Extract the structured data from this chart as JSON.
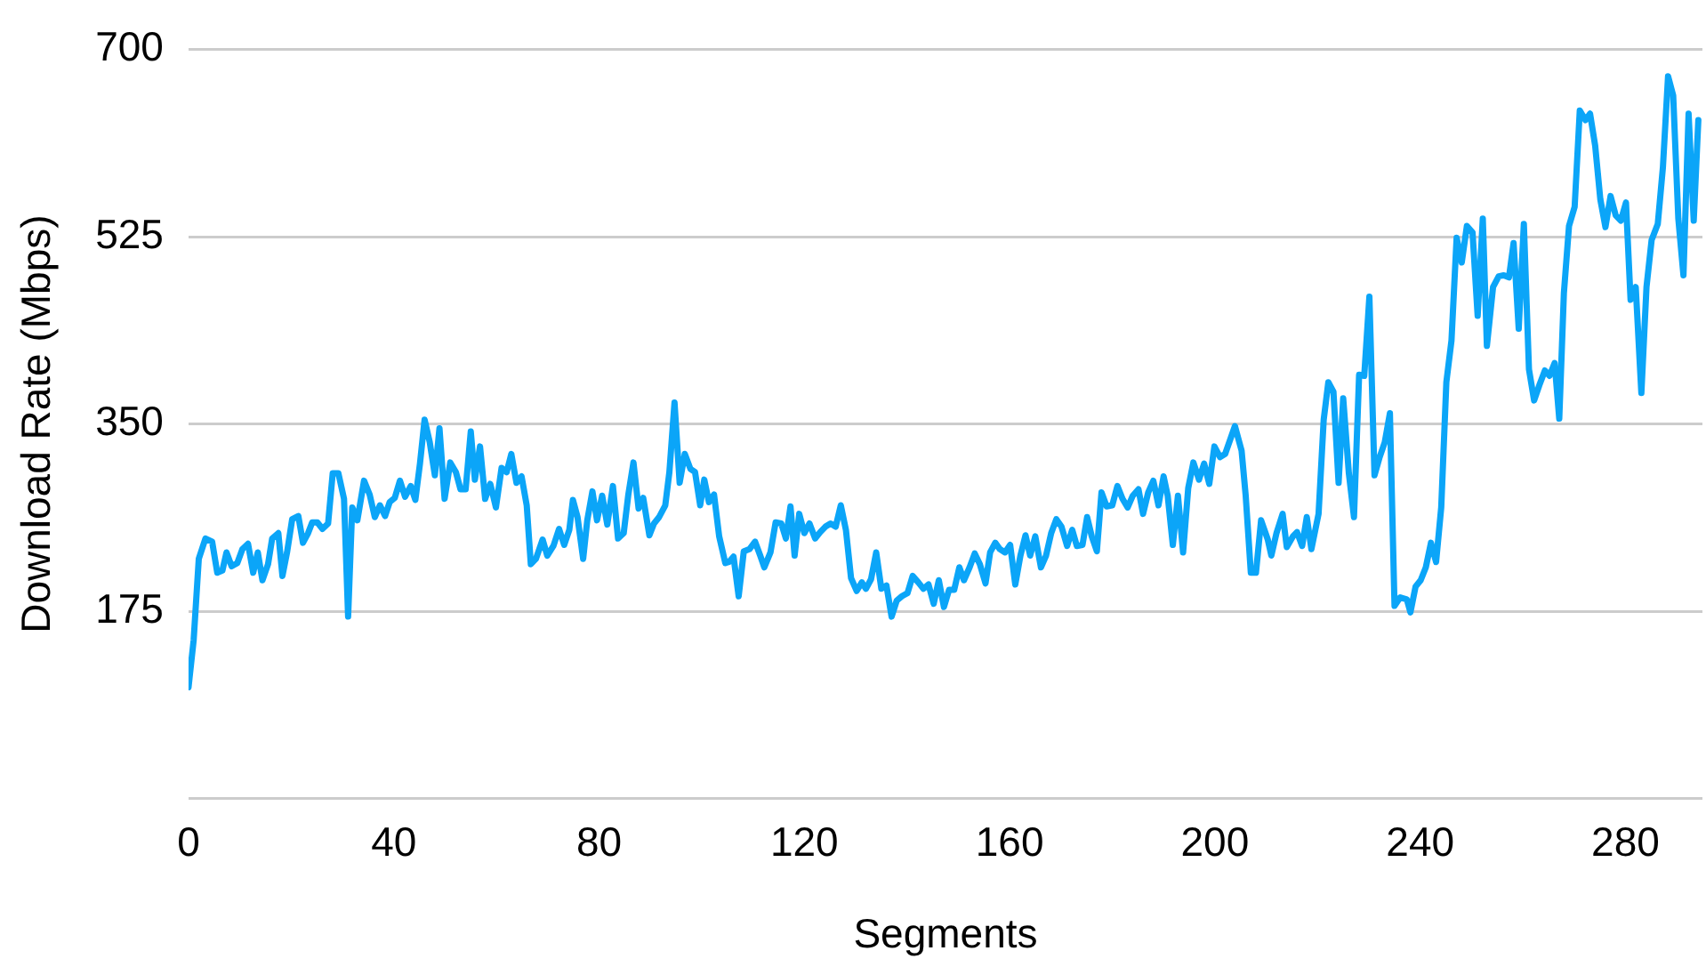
{
  "chart_data": {
    "type": "line",
    "xlabel": "Segments",
    "ylabel": "Download Rate (Mbps)",
    "xlim": [
      0,
      295
    ],
    "xticks": [
      0,
      40,
      80,
      120,
      160,
      200,
      240,
      280
    ],
    "ylim": [
      0,
      700
    ],
    "yticks": [
      {
        "value": 0,
        "label": null
      },
      175,
      350,
      525,
      700
    ],
    "grid": "y",
    "legend": false,
    "marker": "none",
    "line_style": "solid",
    "series": [
      {
        "color": "#0ba5f8",
        "x": [
          0,
          1,
          2,
          3.3,
          4.6,
          5.6,
          6.6,
          7.4,
          8.4,
          9.5,
          10.5,
          11.6,
          12.6,
          13.5,
          14.4,
          15.5,
          16.3,
          17.5,
          18.3,
          19.2,
          20.2,
          21.4,
          22.3,
          23.3,
          24.1,
          25.1,
          26.1,
          27.2,
          28.1,
          29.2,
          30.3,
          31.1,
          31.9,
          32.9,
          34.2,
          35.3,
          36.3,
          37.3,
          38.3,
          39.2,
          40.2,
          41.2,
          42.2,
          43.3,
          44.2,
          45.1,
          46,
          47,
          48,
          48.9,
          49.9,
          51,
          52.1,
          53,
          54,
          55,
          55.8,
          56.8,
          57.8,
          58.8,
          59.9,
          61,
          62,
          62.9,
          63.9,
          64.9,
          65.9,
          66.7,
          67.7,
          69,
          69.9,
          71.1,
          72.2,
          73.2,
          74.2,
          74.9,
          75.8,
          76.9,
          77.7,
          78.7,
          79.6,
          80.6,
          81.6,
          82.7,
          83.7,
          84.8,
          85.7,
          86.7,
          87.7,
          88.6,
          89.8,
          90.7,
          91.7,
          92.9,
          93.7,
          94.7,
          95.7,
          96.7,
          97.8,
          98.7,
          99.7,
          100.5,
          101.4,
          102.4,
          103.4,
          104.6,
          105.3,
          106.2,
          107.2,
          108.2,
          109.3,
          110.4,
          111.4,
          112.2,
          113.4,
          114.4,
          115.5,
          116.4,
          117.3,
          118.1,
          119,
          120,
          121,
          122.1,
          123.1,
          124.1,
          125.1,
          126.1,
          127.1,
          128.1,
          129.1,
          130.2,
          131.2,
          132,
          133,
          134,
          135,
          136,
          137,
          138,
          139,
          140.1,
          141.1,
          142.2,
          143.2,
          144.2,
          145.2,
          146.2,
          147.2,
          148.2,
          149.2,
          150.2,
          151.1,
          152.2,
          153.2,
          154.2,
          155.3,
          156.2,
          157.2,
          158.1,
          159.1,
          160.1,
          161.1,
          162.1,
          163.1,
          164,
          165,
          166.1,
          167.1,
          168.1,
          169.1,
          170.1,
          171.2,
          172.2,
          173.1,
          174.2,
          175.1,
          176,
          177,
          177.9,
          178.9,
          180,
          181,
          182,
          183,
          184,
          185.1,
          186,
          187,
          188,
          189,
          190,
          190.8,
          191.8,
          192.8,
          193.8,
          194.8,
          195.8,
          196.9,
          197.9,
          198.9,
          199.9,
          201,
          202,
          203.9,
          205.2,
          206,
          207,
          208,
          209,
          210.3,
          211,
          212,
          213.2,
          214,
          215.2,
          216,
          217,
          217.9,
          218.8,
          220.2,
          221.2,
          222.1,
          223.1,
          224.1,
          225,
          226.1,
          227.1,
          228.1,
          229.1,
          230.1,
          231.1,
          232.1,
          233.1,
          234.1,
          235,
          236.1,
          237.4,
          238.1,
          239.1,
          240.1,
          241.1,
          242.1,
          243.1,
          244.1,
          245.1,
          246.1,
          247.1,
          248.1,
          249.1,
          250.2,
          251.2,
          252.2,
          253,
          254.2,
          255.3,
          256.3,
          257.3,
          258.2,
          259.2,
          260.2,
          261.2,
          262.2,
          263.2,
          264.3,
          265.2,
          266.2,
          267.1,
          268,
          269,
          270.1,
          271.1,
          272.2,
          273.1,
          274.1,
          275.1,
          276.1,
          277.1,
          278.1,
          279.1,
          280.1,
          281,
          282,
          283.1,
          284.1,
          285.1,
          286.3,
          287.3,
          288.3,
          289.3,
          290.3,
          291.3,
          292.3,
          293.3,
          294.2
        ],
        "values": [
          104,
          148,
          224,
          243,
          240,
          211,
          213,
          230,
          217,
          220,
          233,
          238,
          211,
          230,
          204,
          219,
          243,
          248,
          208,
          230,
          261,
          264,
          239,
          248,
          258,
          258,
          252,
          257,
          304,
          304,
          280,
          170,
          272,
          260,
          297,
          284,
          263,
          274,
          264,
          277,
          281,
          297,
          282,
          292,
          279,
          313,
          354,
          333,
          302,
          346,
          280,
          314,
          305,
          289,
          289,
          343,
          298,
          329,
          280,
          294,
          272,
          309,
          305,
          322,
          295,
          301,
          274,
          219,
          224,
          242,
          227,
          236,
          252,
          237,
          251,
          279,
          263,
          224,
          260,
          287,
          260,
          283,
          256,
          292,
          243,
          248,
          284,
          314,
          271,
          281,
          246,
          257,
          263,
          274,
          305,
          370,
          295,
          322,
          308,
          305,
          274,
          298,
          277,
          284,
          245,
          220,
          221,
          226,
          189,
          231,
          233,
          240,
          227,
          216,
          230,
          258,
          257,
          243,
          273,
          227,
          266,
          248,
          257,
          243,
          249,
          254,
          257,
          254,
          274,
          251,
          206,
          194,
          202,
          196,
          205,
          230,
          196,
          199,
          170,
          185,
          189,
          192,
          208,
          202,
          196,
          200,
          182,
          204,
          179,
          195,
          195,
          216,
          204,
          216,
          229,
          219,
          201,
          230,
          239,
          233,
          230,
          237,
          200,
          227,
          246,
          227,
          245,
          216,
          227,
          248,
          261,
          254,
          236,
          251,
          236,
          237,
          263,
          245,
          231,
          286,
          273,
          274,
          292,
          280,
          272,
          283,
          289,
          266,
          286,
          297,
          274,
          301,
          283,
          237,
          283,
          230,
          290,
          314,
          298,
          313,
          294,
          329,
          319,
          322,
          348,
          325,
          283,
          211,
          211,
          260,
          242,
          227,
          248,
          266,
          235,
          245,
          249,
          236,
          263,
          233,
          266,
          354,
          389,
          380,
          295,
          374,
          304,
          263,
          396,
          395,
          469,
          302,
          319,
          333,
          360,
          180,
          188,
          186,
          174,
          198,
          204,
          216,
          239,
          221,
          272,
          389,
          428,
          524,
          501,
          535,
          529,
          451,
          542,
          423,
          478,
          488,
          489,
          487,
          519,
          439,
          537,
          401,
          372,
          386,
          400,
          395,
          407,
          355,
          472,
          535,
          553,
          643,
          634,
          640,
          610,
          560,
          534,
          563,
          545,
          540,
          557,
          466,
          478,
          379,
          478,
          522,
          537,
          590,
          675,
          657,
          542,
          489,
          640,
          540,
          634
        ]
      }
    ]
  }
}
